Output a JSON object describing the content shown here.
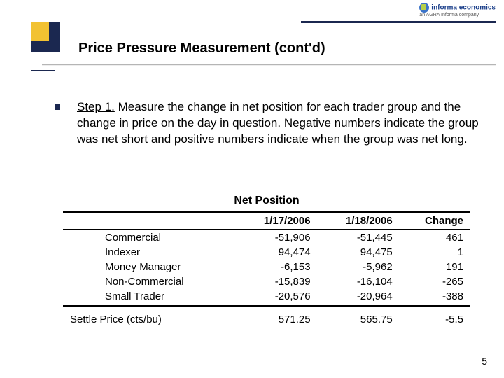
{
  "logo": {
    "brand": "informa economics",
    "tagline": "an AGRA Informa company"
  },
  "title": "Price Pressure Measurement (cont'd)",
  "body": {
    "step_label": "Step 1.",
    "step_text": "  Measure the change in net position for each trader group and the change in price on the day in question.  Negative numbers indicate the group was net short and positive numbers indicate when the group was net long."
  },
  "table": {
    "title": "Net Position",
    "headers": {
      "c0": "",
      "c1": "1/17/2006",
      "c2": "1/18/2006",
      "c3": "Change"
    },
    "rows": [
      {
        "label": "Commercial",
        "d1": "-51,906",
        "d2": "-51,445",
        "chg": "461"
      },
      {
        "label": "Indexer",
        "d1": "94,474",
        "d2": "94,475",
        "chg": "1"
      },
      {
        "label": "Money Manager",
        "d1": "-6,153",
        "d2": "-5,962",
        "chg": "191"
      },
      {
        "label": "Non-Commercial",
        "d1": "-15,839",
        "d2": "-16,104",
        "chg": "-265"
      },
      {
        "label": "Small Trader",
        "d1": "-20,576",
        "d2": "-20,964",
        "chg": "-388"
      }
    ],
    "footer": {
      "label": "Settle Price (cts/bu)",
      "d1": "571.25",
      "d2": "565.75",
      "chg": "-5.5"
    }
  },
  "page_number": "5",
  "style": {
    "colors": {
      "navy": "#1b2850",
      "gold": "#f2c232",
      "rule_gray": "#b5b5b5",
      "text": "#000000",
      "brand_blue": "#1b3f8a"
    },
    "fonts": {
      "title_pt": 20,
      "body_pt": 17,
      "table_pt": 15,
      "table_title_pt": 16
    }
  }
}
